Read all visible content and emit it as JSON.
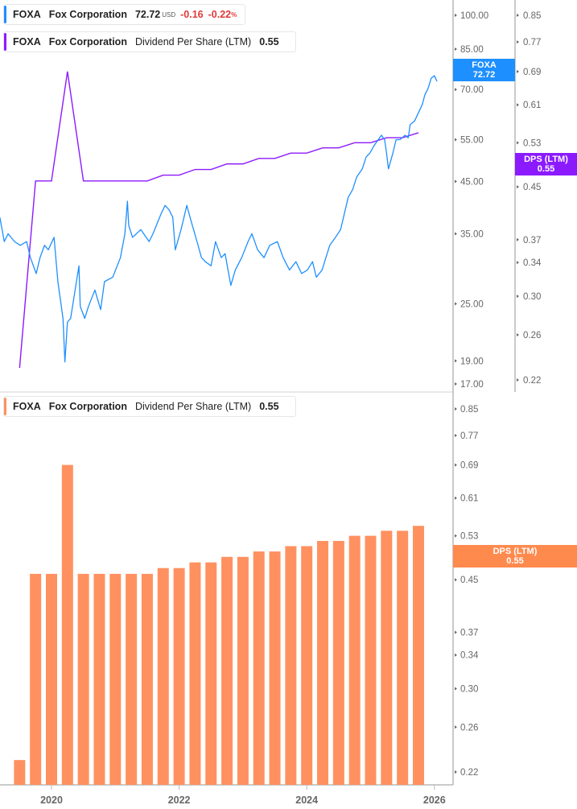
{
  "colors": {
    "price": "#1e8fff",
    "dps_line": "#8c1aff",
    "dps_bar": "#ff9160",
    "badge_price": "#1e8fff",
    "badge_dps": "#8c1aff",
    "badge_dps_bar": "#ff8a4e",
    "negative": "#e03a3a",
    "axis": "#b8b8b8"
  },
  "legend_price": {
    "ticker": "FOXA",
    "name": "Fox Corporation",
    "price": "72.72",
    "currency": "USD",
    "change": "-0.16",
    "change_pct": "-0.22",
    "pct_sign": "%"
  },
  "legend_dps_top": {
    "ticker": "FOXA",
    "name": "Fox Corporation",
    "metric": "Dividend Per Share (LTM)",
    "value": "0.55"
  },
  "legend_dps_bottom": {
    "ticker": "FOXA",
    "name": "Fox Corporation",
    "metric": "Dividend Per Share (LTM)",
    "value": "0.55"
  },
  "badges": {
    "price": {
      "label": "FOXA",
      "value": "72.72"
    },
    "dps_top": {
      "label": "DPS (LTM)",
      "value": "0.55"
    },
    "dps_bottom": {
      "label": "DPS (LTM)",
      "value": "0.55"
    }
  },
  "chart_data": [
    {
      "type": "line",
      "scale": "log",
      "series": [
        {
          "name": "FOXA",
          "axis": "left",
          "points": [
            [
              2019.19,
              37.9
            ],
            [
              2019.26,
              33.7
            ],
            [
              2019.32,
              35.0
            ],
            [
              2019.42,
              33.7
            ],
            [
              2019.51,
              33.1
            ],
            [
              2019.61,
              33.7
            ],
            [
              2019.67,
              31.2
            ],
            [
              2019.76,
              28.9
            ],
            [
              2019.82,
              31.2
            ],
            [
              2019.89,
              33.1
            ],
            [
              2019.95,
              32.4
            ],
            [
              2020.04,
              34.4
            ],
            [
              2020.1,
              27.8
            ],
            [
              2020.18,
              23.3
            ],
            [
              2020.21,
              18.9
            ],
            [
              2020.25,
              22.9
            ],
            [
              2020.3,
              23.3
            ],
            [
              2020.37,
              26.7
            ],
            [
              2020.43,
              30.0
            ],
            [
              2020.45,
              24.7
            ],
            [
              2020.52,
              23.3
            ],
            [
              2020.58,
              24.7
            ],
            [
              2020.68,
              26.7
            ],
            [
              2020.77,
              24.3
            ],
            [
              2020.83,
              27.8
            ],
            [
              2020.96,
              28.4
            ],
            [
              2021.08,
              31.2
            ],
            [
              2021.15,
              35.0
            ],
            [
              2021.19,
              40.9
            ],
            [
              2021.21,
              36.4
            ],
            [
              2021.27,
              34.4
            ],
            [
              2021.4,
              35.7
            ],
            [
              2021.53,
              33.7
            ],
            [
              2021.59,
              35.0
            ],
            [
              2021.72,
              38.6
            ],
            [
              2021.78,
              40.1
            ],
            [
              2021.84,
              39.3
            ],
            [
              2021.9,
              37.9
            ],
            [
              2021.94,
              32.4
            ],
            [
              2022.03,
              35.7
            ],
            [
              2022.12,
              40.1
            ],
            [
              2022.19,
              37.1
            ],
            [
              2022.28,
              33.7
            ],
            [
              2022.35,
              31.2
            ],
            [
              2022.41,
              30.6
            ],
            [
              2022.5,
              30.0
            ],
            [
              2022.57,
              33.7
            ],
            [
              2022.66,
              31.2
            ],
            [
              2022.72,
              31.8
            ],
            [
              2022.81,
              27.3
            ],
            [
              2022.88,
              29.4
            ],
            [
              2022.98,
              31.2
            ],
            [
              2023.08,
              33.7
            ],
            [
              2023.14,
              35.0
            ],
            [
              2023.23,
              32.4
            ],
            [
              2023.33,
              31.2
            ],
            [
              2023.42,
              33.1
            ],
            [
              2023.54,
              33.7
            ],
            [
              2023.63,
              31.2
            ],
            [
              2023.73,
              29.4
            ],
            [
              2023.83,
              30.6
            ],
            [
              2023.92,
              28.9
            ],
            [
              2024.01,
              29.4
            ],
            [
              2024.09,
              30.6
            ],
            [
              2024.15,
              28.4
            ],
            [
              2024.24,
              29.4
            ],
            [
              2024.3,
              31.2
            ],
            [
              2024.36,
              33.1
            ],
            [
              2024.45,
              34.4
            ],
            [
              2024.53,
              35.7
            ],
            [
              2024.59,
              38.6
            ],
            [
              2024.65,
              41.7
            ],
            [
              2024.72,
              43.3
            ],
            [
              2024.78,
              45.9
            ],
            [
              2024.87,
              47.8
            ],
            [
              2024.93,
              50.6
            ],
            [
              2024.99,
              51.6
            ],
            [
              2025.06,
              53.6
            ],
            [
              2025.12,
              55.0
            ],
            [
              2025.17,
              56.2
            ],
            [
              2025.22,
              55.0
            ],
            [
              2025.25,
              51.6
            ],
            [
              2025.28,
              47.8
            ],
            [
              2025.35,
              51.6
            ],
            [
              2025.4,
              55.0
            ],
            [
              2025.46,
              55.0
            ],
            [
              2025.54,
              56.2
            ],
            [
              2025.59,
              55.5
            ],
            [
              2025.62,
              59.1
            ],
            [
              2025.69,
              60.2
            ],
            [
              2025.75,
              62.6
            ],
            [
              2025.81,
              65.1
            ],
            [
              2025.85,
              68.2
            ],
            [
              2025.9,
              70.3
            ],
            [
              2025.95,
              73.9
            ],
            [
              2026.0,
              74.8
            ],
            [
              2026.04,
              72.8
            ]
          ]
        },
        {
          "name": "Dividend Per Share (LTM)",
          "axis": "right",
          "ref": "dividends"
        }
      ],
      "left_axis": {
        "ticks": [
          100,
          85,
          70,
          55,
          45,
          35,
          25,
          19,
          17
        ],
        "tick_labels": [
          "100.00",
          "85.00",
          "70.00",
          "55.00",
          "45.00",
          "35.00",
          "25.00",
          "19.00",
          "17.00"
        ]
      },
      "right_axis": {
        "ticks": [
          0.85,
          0.77,
          0.69,
          0.61,
          0.53,
          0.45,
          0.37,
          0.34,
          0.3,
          0.26,
          0.22
        ],
        "tick_labels": [
          "0.85",
          "0.77",
          "0.69",
          "0.61",
          "0.53",
          "0.45",
          "0.37",
          "0.34",
          "0.30",
          "0.26",
          "0.22"
        ]
      }
    },
    {
      "type": "bar",
      "scale": "log",
      "x": [
        2019.5,
        2019.75,
        2020.0,
        2020.25,
        2020.5,
        2020.75,
        2021.0,
        2021.25,
        2021.5,
        2021.75,
        2022.0,
        2022.25,
        2022.5,
        2022.75,
        2023.0,
        2023.25,
        2023.5,
        2023.75,
        2024.0,
        2024.25,
        2024.5,
        2024.75,
        2025.0,
        2025.25,
        2025.5,
        2025.75
      ],
      "values": [
        0.23,
        0.46,
        0.46,
        0.69,
        0.46,
        0.46,
        0.46,
        0.46,
        0.46,
        0.47,
        0.47,
        0.48,
        0.48,
        0.49,
        0.49,
        0.5,
        0.5,
        0.51,
        0.51,
        0.52,
        0.52,
        0.53,
        0.53,
        0.54,
        0.54,
        0.55
      ],
      "right_axis": {
        "ticks": [
          0.85,
          0.77,
          0.69,
          0.61,
          0.53,
          0.45,
          0.37,
          0.34,
          0.3,
          0.26,
          0.22
        ],
        "tick_labels": [
          "0.85",
          "0.77",
          "0.69",
          "0.61",
          "0.53",
          "0.45",
          "0.37",
          "0.34",
          "0.30",
          "0.26",
          "0.22"
        ]
      },
      "x_axis": {
        "ticks": [
          2020,
          2022,
          2024,
          2026
        ],
        "tick_labels": [
          "2020",
          "2022",
          "2024",
          "2026"
        ]
      }
    }
  ]
}
